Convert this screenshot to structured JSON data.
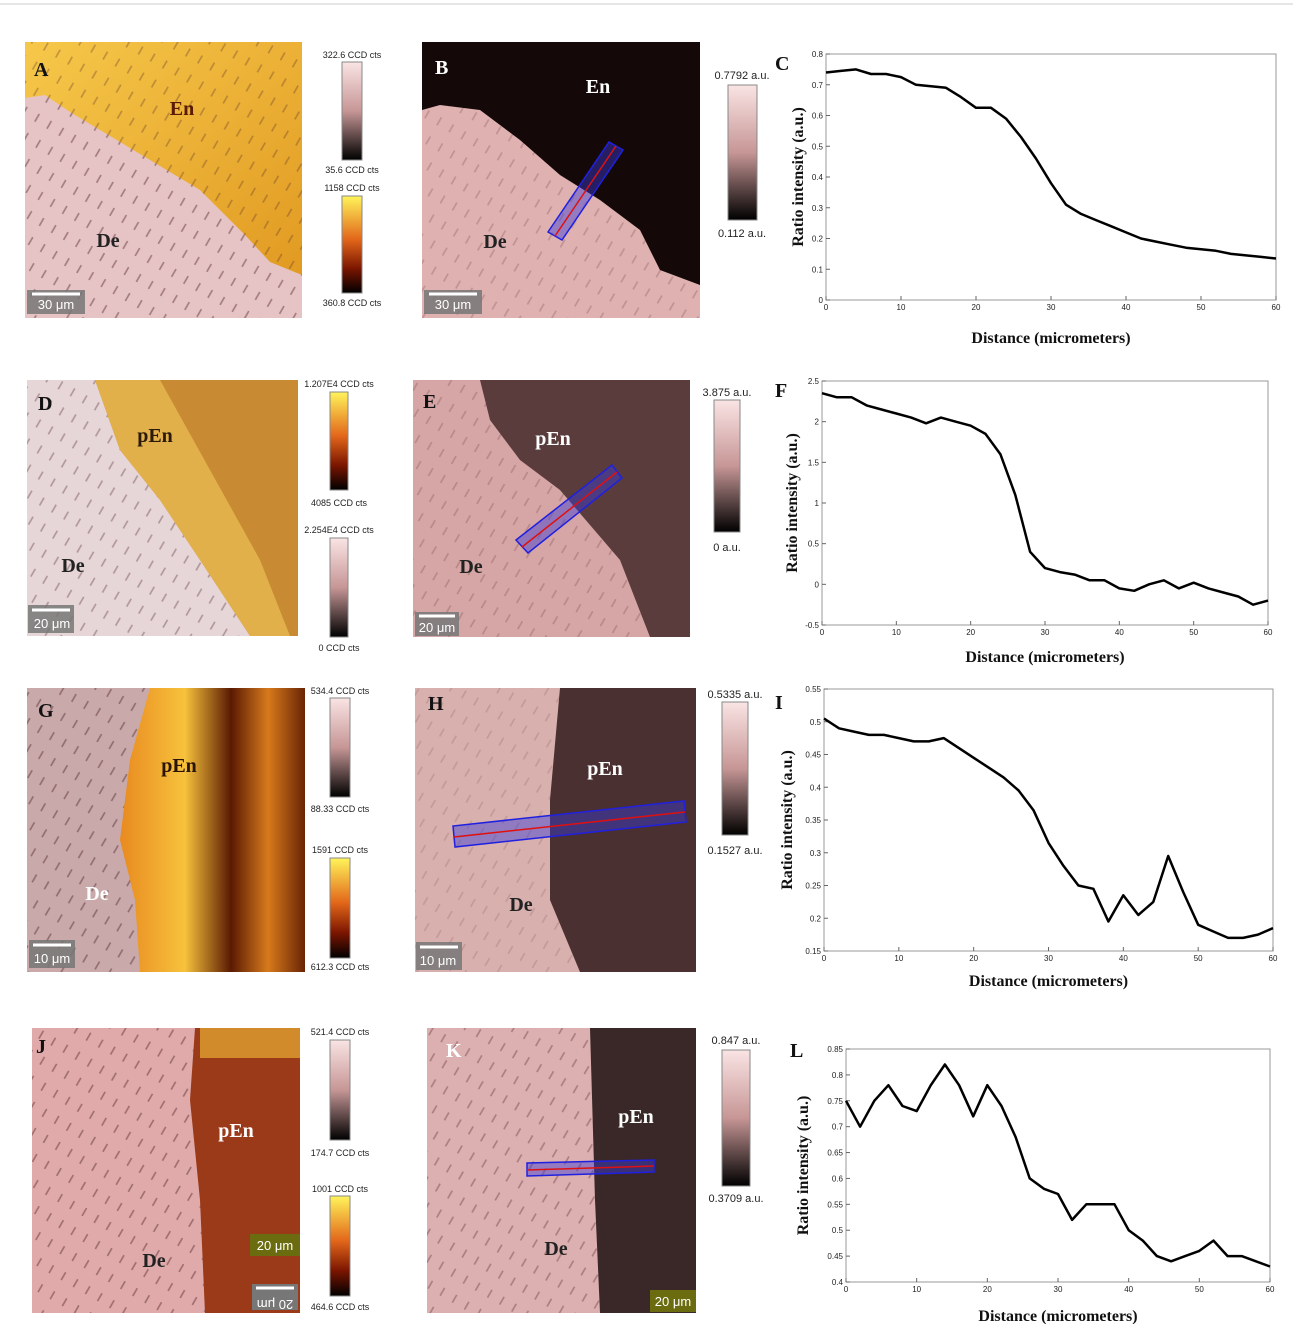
{
  "panels": [
    {
      "label": "A",
      "regions": [
        "En",
        "De"
      ],
      "scale_bars": [
        "30 μm"
      ],
      "colorbars": [
        {
          "max": "322.6 CCD cts",
          "min": "35.6 CCD cts"
        },
        {
          "max": "1158 CCD cts",
          "min": "360.8 CCD cts"
        }
      ]
    },
    {
      "label": "B",
      "regions": [
        "En",
        "De"
      ],
      "scale_bars": [
        "30 μm"
      ],
      "colorbars": [
        {
          "max": "0.7792 a.u.",
          "min": "0.112 a.u."
        }
      ]
    },
    {
      "label": "D",
      "regions": [
        "pEn",
        "De"
      ],
      "scale_bars": [
        "20 μm"
      ],
      "colorbars": [
        {
          "max": "1.207E4 CCD cts",
          "min": "4085 CCD cts"
        },
        {
          "max": "2.254E4 CCD cts",
          "min": "0 CCD cts"
        }
      ]
    },
    {
      "label": "E",
      "regions": [
        "pEn",
        "De"
      ],
      "scale_bars": [
        "20 μm"
      ],
      "colorbars": [
        {
          "max": "3.875 a.u.",
          "min": "0 a.u."
        }
      ]
    },
    {
      "label": "G",
      "regions": [
        "pEn",
        "De"
      ],
      "scale_bars": [
        "10 μm"
      ],
      "colorbars": [
        {
          "max": "534.4 CCD cts",
          "min": "88.33 CCD cts"
        },
        {
          "max": "1591 CCD cts",
          "min": "612.3 CCD cts"
        }
      ]
    },
    {
      "label": "H",
      "regions": [
        "pEn",
        "De"
      ],
      "scale_bars": [
        "10 μm"
      ],
      "colorbars": [
        {
          "max": "0.5335 a.u.",
          "min": "0.1527 a.u."
        }
      ]
    },
    {
      "label": "J",
      "regions": [
        "pEn",
        "De"
      ],
      "scale_bars": [
        "20 μm",
        "20 μm"
      ],
      "colorbars": [
        {
          "max": "521.4 CCD cts",
          "min": "174.7 CCD cts"
        },
        {
          "max": "1001 CCD cts",
          "min": "464.6 CCD cts"
        }
      ]
    },
    {
      "label": "K",
      "regions": [
        "pEn",
        "De"
      ],
      "scale_bars": [
        "20 μm"
      ],
      "colorbars": [
        {
          "max": "0.847 a.u.",
          "min": "0.3709 a.u."
        }
      ]
    }
  ],
  "chart_data": [
    {
      "type": "line",
      "label": "C",
      "x_label": "Distance (micrometers)",
      "y_label": "Ratio intensity (a.u.)",
      "color": "#000000",
      "x": [
        0,
        2,
        4,
        6,
        8,
        10,
        12,
        14,
        16,
        18,
        20,
        22,
        24,
        26,
        28,
        30,
        32,
        34,
        36,
        38,
        40,
        42,
        44,
        46,
        48,
        50,
        52,
        54,
        56,
        58,
        60
      ],
      "values": [
        0.74,
        0.745,
        0.75,
        0.735,
        0.735,
        0.725,
        0.7,
        0.695,
        0.69,
        0.66,
        0.625,
        0.625,
        0.59,
        0.53,
        0.46,
        0.38,
        0.31,
        0.28,
        0.26,
        0.24,
        0.22,
        0.2,
        0.19,
        0.18,
        0.17,
        0.165,
        0.16,
        0.15,
        0.145,
        0.14,
        0.135
      ],
      "xlim": [
        0,
        60
      ],
      "ylim": [
        0,
        0.8
      ],
      "xticks": [
        0,
        10,
        20,
        30,
        40,
        50,
        60
      ],
      "yticks": [
        0,
        0.1,
        0.2,
        0.3,
        0.4,
        0.5,
        0.6,
        0.7,
        0.8
      ]
    },
    {
      "type": "line",
      "label": "F",
      "x_label": "Distance (micrometers)",
      "y_label": "Ratio intensity (a.u.)",
      "color": "#000000",
      "x": [
        0,
        2,
        4,
        6,
        8,
        10,
        12,
        14,
        16,
        18,
        20,
        22,
        24,
        26,
        28,
        30,
        32,
        34,
        36,
        38,
        40,
        42,
        44,
        46,
        48,
        50,
        52,
        54,
        56,
        58,
        60
      ],
      "values": [
        2.35,
        2.3,
        2.3,
        2.2,
        2.15,
        2.1,
        2.05,
        1.98,
        2.05,
        2.0,
        1.95,
        1.85,
        1.6,
        1.1,
        0.4,
        0.2,
        0.15,
        0.12,
        0.05,
        0.05,
        -0.05,
        -0.08,
        0.0,
        0.05,
        -0.05,
        0.02,
        -0.05,
        -0.1,
        -0.15,
        -0.25,
        -0.2
      ],
      "xlim": [
        0,
        60
      ],
      "ylim": [
        -0.5,
        2.5
      ],
      "xticks": [
        0,
        10,
        20,
        30,
        40,
        50,
        60
      ],
      "yticks": [
        -0.5,
        0,
        0.5,
        1,
        1.5,
        2,
        2.5
      ]
    },
    {
      "type": "line",
      "label": "I",
      "x_label": "Distance (micrometers)",
      "y_label": "Ratio intensity (a.u.)",
      "color": "#000000",
      "x": [
        0,
        2,
        4,
        6,
        8,
        10,
        12,
        14,
        16,
        18,
        20,
        22,
        24,
        26,
        28,
        30,
        32,
        34,
        36,
        38,
        40,
        42,
        44,
        46,
        48,
        50,
        52,
        54,
        56,
        58,
        60
      ],
      "values": [
        0.505,
        0.49,
        0.485,
        0.48,
        0.48,
        0.475,
        0.47,
        0.47,
        0.475,
        0.46,
        0.445,
        0.43,
        0.415,
        0.395,
        0.365,
        0.315,
        0.28,
        0.25,
        0.245,
        0.195,
        0.235,
        0.205,
        0.225,
        0.295,
        0.24,
        0.19,
        0.18,
        0.17,
        0.17,
        0.175,
        0.185
      ],
      "xlim": [
        0,
        60
      ],
      "ylim": [
        0.15,
        0.55
      ],
      "xticks": [
        0,
        10,
        20,
        30,
        40,
        50,
        60
      ],
      "yticks": [
        0.15,
        0.2,
        0.25,
        0.3,
        0.35,
        0.4,
        0.45,
        0.5,
        0.55
      ]
    },
    {
      "type": "line",
      "label": "L",
      "x_label": "Distance (micrometers)",
      "y_label": "Ratio intensity (a.u.)",
      "color": "#000000",
      "x": [
        0,
        2,
        4,
        6,
        8,
        10,
        12,
        14,
        16,
        18,
        20,
        22,
        24,
        26,
        28,
        30,
        32,
        34,
        36,
        38,
        40,
        42,
        44,
        46,
        48,
        50,
        52,
        54,
        56,
        58,
        60
      ],
      "values": [
        0.75,
        0.7,
        0.75,
        0.78,
        0.74,
        0.73,
        0.78,
        0.82,
        0.78,
        0.72,
        0.78,
        0.74,
        0.68,
        0.6,
        0.58,
        0.57,
        0.52,
        0.55,
        0.55,
        0.55,
        0.5,
        0.48,
        0.45,
        0.44,
        0.45,
        0.46,
        0.48,
        0.45,
        0.45,
        0.44,
        0.43
      ],
      "xlim": [
        0,
        60
      ],
      "ylim": [
        0.4,
        0.85
      ],
      "xticks": [
        0,
        10,
        20,
        30,
        40,
        50,
        60
      ],
      "yticks": [
        0.4,
        0.45,
        0.5,
        0.55,
        0.6,
        0.65,
        0.7,
        0.75,
        0.8,
        0.85
      ]
    }
  ]
}
